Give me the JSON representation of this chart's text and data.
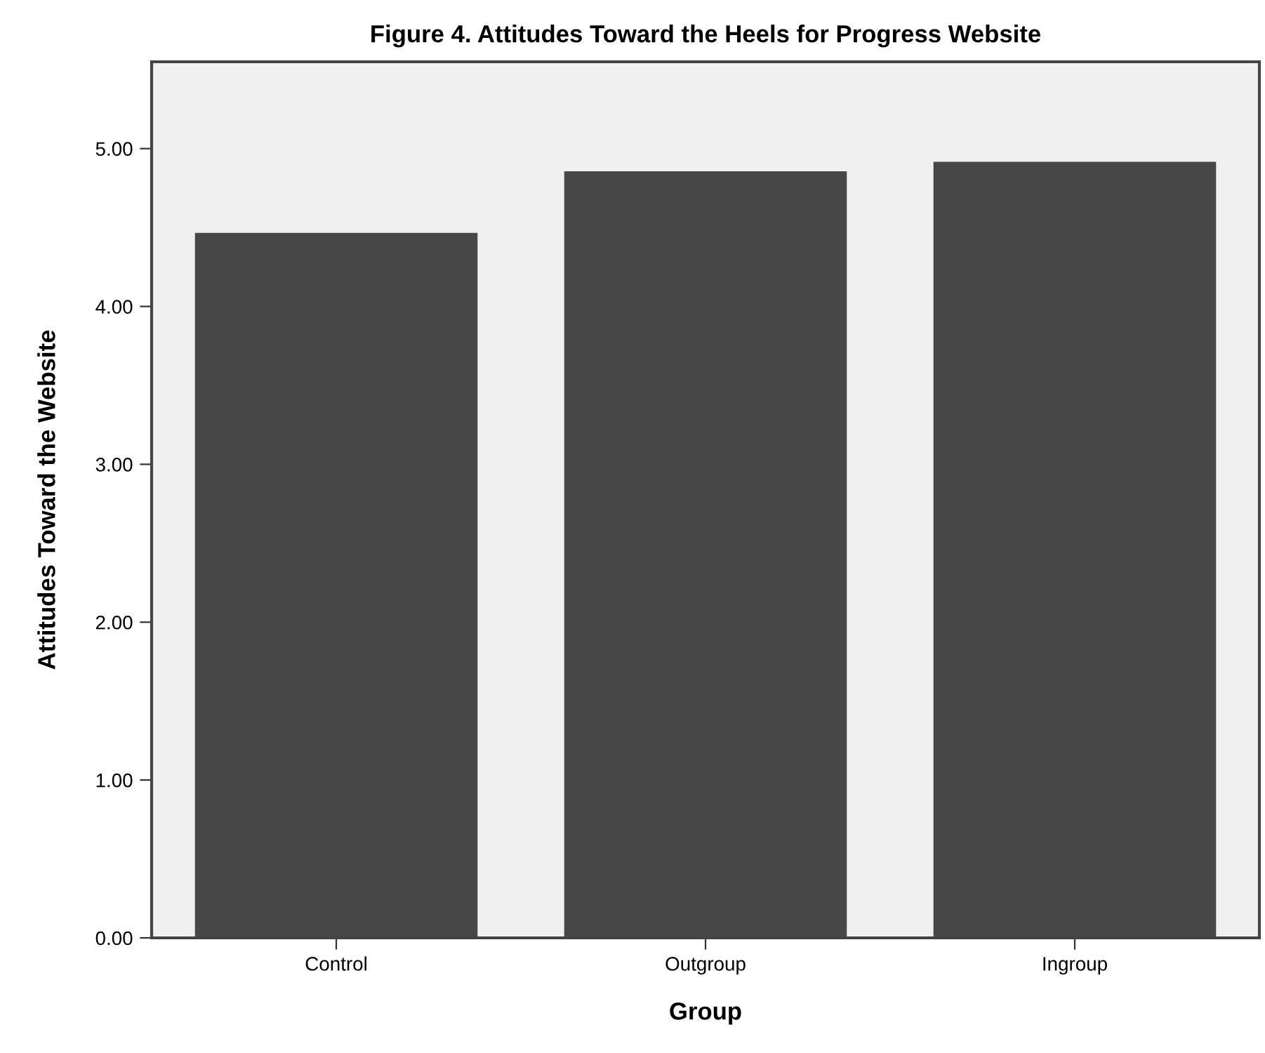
{
  "chart_data": {
    "type": "bar",
    "title": "Figure 4. Attitudes Toward the Heels for Progress Website",
    "xlabel": "Group",
    "ylabel": "Attitudes Toward the Website",
    "categories": [
      "Control",
      "Outgroup",
      "Ingroup"
    ],
    "values": [
      4.46,
      4.85,
      4.91
    ],
    "color": "#474747",
    "ylim": [
      0,
      5.55
    ],
    "yticks": [
      {
        "value": 0,
        "label": "0.00"
      },
      {
        "value": 1,
        "label": "1.00"
      },
      {
        "value": 2,
        "label": "2.00"
      },
      {
        "value": 3,
        "label": "3.00"
      },
      {
        "value": 4,
        "label": "4.00"
      },
      {
        "value": 5,
        "label": "5.00"
      }
    ],
    "grid": false,
    "legend": false
  }
}
